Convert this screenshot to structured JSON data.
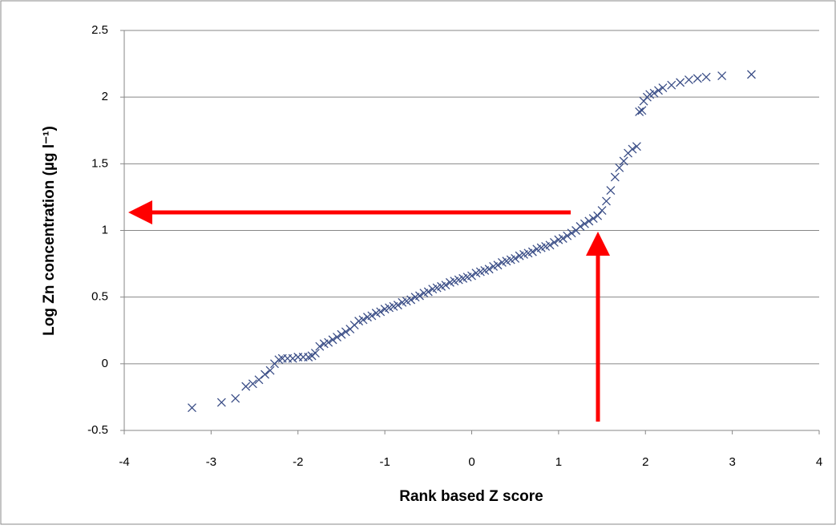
{
  "chart_data": {
    "type": "scatter",
    "xlabel": "Rank based Z score",
    "ylabel": "Log Zn concentration (µg l⁻¹)",
    "x": [
      -3.22,
      -2.88,
      -2.72,
      -2.6,
      -2.52,
      -2.45,
      -2.38,
      -2.32,
      -2.27,
      -2.22,
      -2.18,
      -2.12,
      -2.06,
      -2.0,
      -1.94,
      -1.88,
      -1.84,
      -1.8,
      -1.75,
      -1.7,
      -1.65,
      -1.6,
      -1.55,
      -1.5,
      -1.45,
      -1.4,
      -1.35,
      -1.3,
      -1.25,
      -1.2,
      -1.15,
      -1.1,
      -1.05,
      -1.0,
      -0.95,
      -0.9,
      -0.85,
      -0.8,
      -0.75,
      -0.7,
      -0.65,
      -0.6,
      -0.55,
      -0.5,
      -0.45,
      -0.4,
      -0.35,
      -0.3,
      -0.25,
      -0.2,
      -0.15,
      -0.1,
      -0.05,
      0.0,
      0.05,
      0.1,
      0.15,
      0.2,
      0.25,
      0.3,
      0.35,
      0.4,
      0.45,
      0.5,
      0.55,
      0.6,
      0.65,
      0.7,
      0.75,
      0.8,
      0.85,
      0.9,
      0.95,
      1.0,
      1.05,
      1.1,
      1.15,
      1.2,
      1.25,
      1.3,
      1.35,
      1.4,
      1.45,
      1.5,
      1.55,
      1.6,
      1.65,
      1.7,
      1.75,
      1.8,
      1.85,
      1.9,
      1.93,
      1.96,
      1.98,
      2.02,
      2.05,
      2.1,
      2.15,
      2.2,
      2.3,
      2.4,
      2.5,
      2.6,
      2.7,
      2.88,
      3.22
    ],
    "values": [
      -0.33,
      -0.29,
      -0.26,
      -0.17,
      -0.15,
      -0.12,
      -0.08,
      -0.05,
      0.0,
      0.03,
      0.04,
      0.04,
      0.04,
      0.05,
      0.05,
      0.05,
      0.06,
      0.08,
      0.13,
      0.15,
      0.16,
      0.18,
      0.2,
      0.22,
      0.24,
      0.26,
      0.29,
      0.32,
      0.33,
      0.35,
      0.36,
      0.38,
      0.39,
      0.41,
      0.42,
      0.43,
      0.44,
      0.46,
      0.47,
      0.48,
      0.5,
      0.51,
      0.53,
      0.54,
      0.56,
      0.57,
      0.58,
      0.59,
      0.61,
      0.62,
      0.63,
      0.64,
      0.65,
      0.66,
      0.68,
      0.69,
      0.7,
      0.71,
      0.73,
      0.74,
      0.76,
      0.77,
      0.78,
      0.79,
      0.81,
      0.82,
      0.83,
      0.84,
      0.86,
      0.87,
      0.88,
      0.89,
      0.91,
      0.93,
      0.94,
      0.96,
      0.98,
      1.0,
      1.03,
      1.05,
      1.07,
      1.09,
      1.11,
      1.15,
      1.22,
      1.3,
      1.4,
      1.47,
      1.52,
      1.58,
      1.61,
      1.63,
      1.89,
      1.9,
      1.97,
      2.0,
      2.02,
      2.03,
      2.05,
      2.07,
      2.09,
      2.11,
      2.13,
      2.14,
      2.15,
      2.16,
      2.17
    ],
    "color": "#3b4e87",
    "xlim": [
      -4,
      4
    ],
    "xticks": [
      -4,
      -3,
      -2,
      -1,
      0,
      1,
      2,
      3,
      4
    ],
    "ylim": [
      -0.5,
      2.5
    ],
    "yticks": [
      -0.5,
      0,
      0.5,
      1,
      1.5,
      2,
      2.5
    ],
    "grid": true
  }
}
